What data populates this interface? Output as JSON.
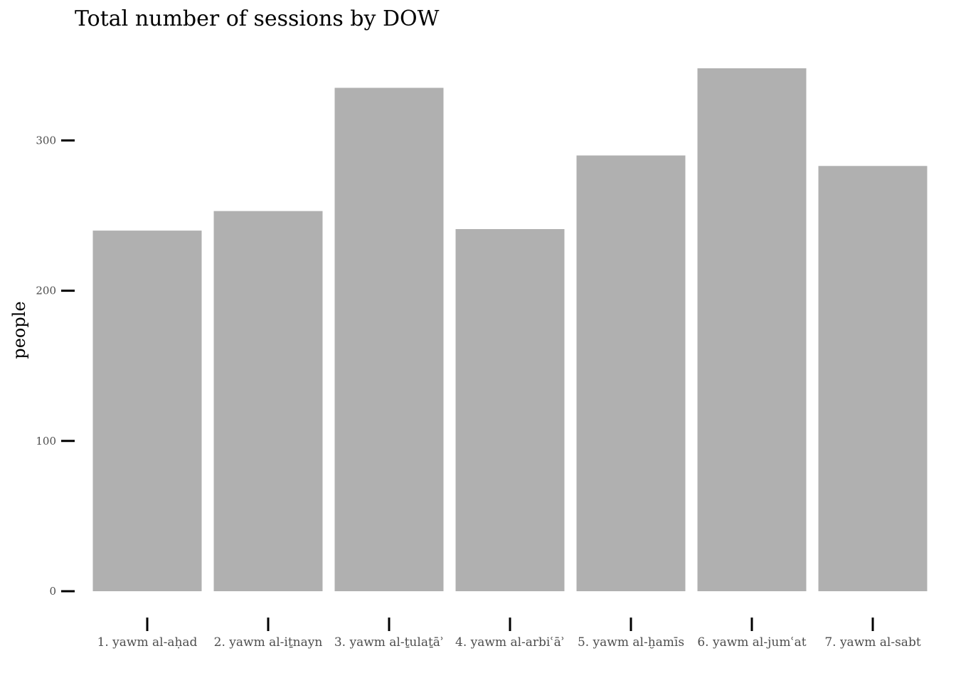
{
  "chart_data": {
    "type": "bar",
    "title": "Total number of sessions by DOW",
    "xlabel": "",
    "ylabel": "people",
    "categories": [
      "1. yawm al-aḥad",
      "2. yawm al-iṯnayn",
      "3. yawm al-ṯulaṯāʾ",
      "4. yawm al-arbiʿāʾ",
      "5. yawm al-ḫamīs",
      "6. yawm al-jumʿat",
      "7. yawm al-sabt"
    ],
    "values": [
      240,
      253,
      335,
      241,
      290,
      348,
      283
    ],
    "ylim": [
      0,
      348
    ],
    "yticks": [
      0,
      100,
      200,
      300
    ],
    "grid": false,
    "legend": "none",
    "bar_color": "#b0b0b0",
    "tick_label_color": "#4d4d4d"
  }
}
